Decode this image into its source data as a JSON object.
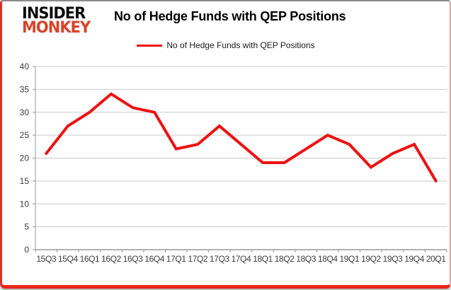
{
  "logo": {
    "line1": "INSIDER",
    "line2": "MONKEY"
  },
  "header": {
    "title": "No of Hedge Funds with QEP Positions"
  },
  "legend": {
    "label": "No of Hedge Funds with QEP Positions"
  },
  "colors": {
    "line_red": "#ee1111",
    "logo_red": "#d8432a",
    "border_red": "#ea251a",
    "grid_gray": "#c9c9c9",
    "axis_gray": "#9a9a9a",
    "label_gray": "#3c3c3c"
  },
  "chart_data": {
    "type": "line",
    "title": "No of Hedge Funds with QEP Positions",
    "xlabel": "",
    "ylabel": "",
    "ylim": [
      0,
      40
    ],
    "yticks": [
      0,
      5,
      10,
      15,
      20,
      25,
      30,
      35,
      40
    ],
    "grid": true,
    "legend_position": "top",
    "categories": [
      "15Q3",
      "15Q4",
      "16Q1",
      "16Q2",
      "16Q3",
      "16Q4",
      "17Q1",
      "17Q2",
      "17Q3",
      "17Q4",
      "18Q1",
      "18Q2",
      "18Q3",
      "18Q4",
      "19Q1",
      "19Q2",
      "19Q3",
      "19Q4",
      "20Q1"
    ],
    "series": [
      {
        "name": "No of Hedge Funds with QEP Positions",
        "color": "#ee1111",
        "values": [
          21,
          27,
          30,
          34,
          31,
          30,
          22,
          23,
          27,
          23,
          19,
          19,
          22,
          25,
          23,
          18,
          21,
          23,
          15
        ]
      }
    ]
  }
}
